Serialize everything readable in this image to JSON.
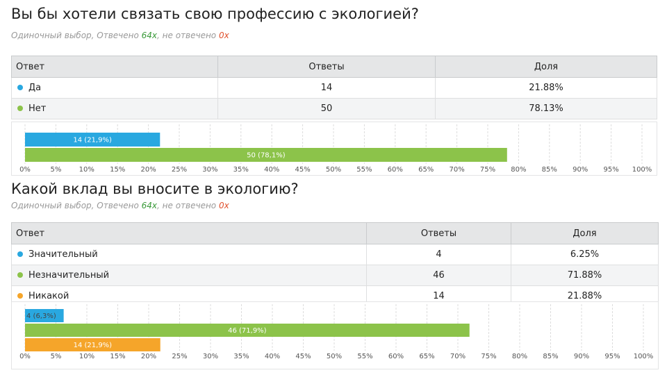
{
  "subtitle_parts": {
    "prefix": "Одиночный выбор, Отвечено ",
    "answered": "64x",
    "middle": ", не отвечено ",
    "unanswered": "0x"
  },
  "table_headers": {
    "answer": "Ответ",
    "count": "Ответы",
    "share": "Доля"
  },
  "colors": {
    "blue": "#29a8e0",
    "green": "#8cc34a",
    "orange": "#f5a52a"
  },
  "chart_data": [
    {
      "type": "bar",
      "title": "Вы бы хотели связать свою профессию с экологией?",
      "categories": [
        "Да",
        "Нет"
      ],
      "values": [
        14,
        50
      ],
      "shares": [
        "21.88%",
        "78.13%"
      ],
      "bar_labels": [
        "14 (21,9%)",
        "50 (78,1%)"
      ],
      "bar_percent": [
        21.88,
        78.13
      ],
      "colors": [
        "#29a8e0",
        "#8cc34a"
      ],
      "xlim": [
        0,
        100
      ],
      "xticks": [
        "0%",
        "5%",
        "10%",
        "15%",
        "20%",
        "25%",
        "30%",
        "35%",
        "40%",
        "45%",
        "50%",
        "55%",
        "60%",
        "65%",
        "70%",
        "75%",
        "80%",
        "85%",
        "90%",
        "95%",
        "100%"
      ],
      "grid": true
    },
    {
      "type": "bar",
      "title": "Какой вклад вы вносите в экологию?",
      "categories": [
        "Значительный",
        "Незначительный",
        "Никакой"
      ],
      "values": [
        4,
        46,
        14
      ],
      "shares": [
        "6.25%",
        "71.88%",
        "21.88%"
      ],
      "bar_labels": [
        "4 (6,3%)",
        "46 (71,9%)",
        "14 (21,9%)"
      ],
      "bar_percent": [
        6.25,
        71.88,
        21.88
      ],
      "colors": [
        "#29a8e0",
        "#8cc34a",
        "#f5a52a"
      ],
      "xlim": [
        0,
        100
      ],
      "xticks": [
        "0%",
        "5%",
        "10%",
        "15%",
        "20%",
        "25%",
        "30%",
        "35%",
        "40%",
        "45%",
        "50%",
        "55%",
        "60%",
        "65%",
        "70%",
        "75%",
        "80%",
        "85%",
        "90%",
        "95%",
        "100%"
      ],
      "grid": true
    }
  ]
}
